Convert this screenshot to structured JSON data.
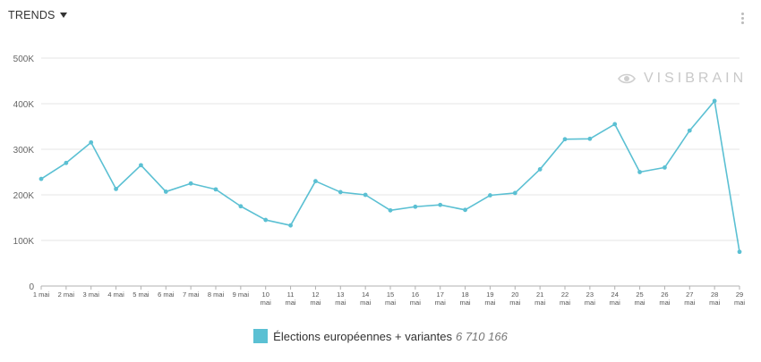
{
  "header": {
    "title": "TRENDS",
    "menu_icon": "more-vertical-icon"
  },
  "watermark": {
    "text": "VISIBRAIN",
    "icon": "eye-icon"
  },
  "legend": {
    "label": "Élections européennes + variantes",
    "total": "6 710 166",
    "color": "#5bc0d3"
  },
  "chart_data": {
    "type": "line",
    "title": "TRENDS",
    "xlabel": "",
    "ylabel": "",
    "ylim": [
      0,
      500000
    ],
    "yticks": [
      0,
      100000,
      200000,
      300000,
      400000,
      500000
    ],
    "ytick_labels": [
      "0",
      "100K",
      "200K",
      "300K",
      "400K",
      "500K"
    ],
    "categories": [
      "1 mai",
      "2 mai",
      "3 mai",
      "4 mai",
      "5 mai",
      "6 mai",
      "7 mai",
      "8 mai",
      "9 mai",
      "10 mai",
      "11 mai",
      "12 mai",
      "13 mai",
      "14 mai",
      "15 mai",
      "16 mai",
      "17 mai",
      "18 mai",
      "19 mai",
      "20 mai",
      "21 mai",
      "22 mai",
      "23 mai",
      "24 mai",
      "25 mai",
      "26 mai",
      "27 mai",
      "28 mai",
      "29 mai"
    ],
    "series": [
      {
        "name": "Élections européennes + variantes",
        "color": "#5bc0d3",
        "values": [
          235000,
          270000,
          315000,
          213000,
          265000,
          207000,
          225000,
          212000,
          175000,
          145000,
          133000,
          230000,
          206000,
          200000,
          166000,
          174000,
          178000,
          167000,
          199000,
          204000,
          256000,
          322000,
          323000,
          355000,
          250000,
          260000,
          341000,
          406000,
          75000
        ]
      }
    ]
  }
}
